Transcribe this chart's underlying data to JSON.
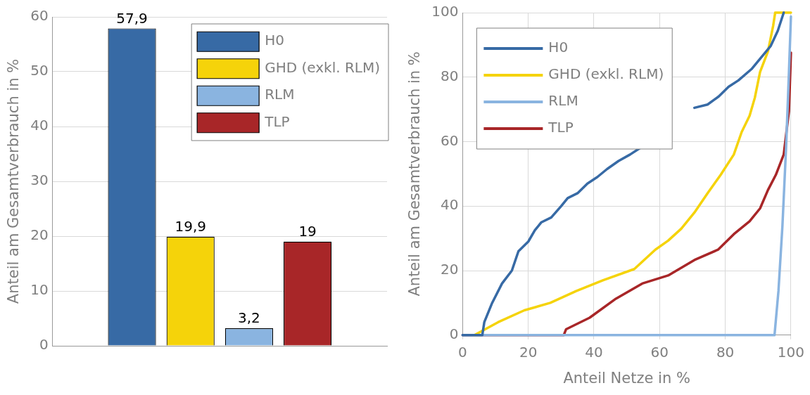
{
  "chart_data": [
    {
      "type": "bar",
      "ylabel": "Anteil am Gesamtverbrauch in %",
      "categories": [
        null
      ],
      "series": [
        {
          "name": "H0",
          "color": "#376aa5",
          "values": [
            57.9
          ],
          "value_labels": [
            "57,9"
          ]
        },
        {
          "name": "GHD (exkl. RLM)",
          "color": "#f5d30a",
          "values": [
            19.9
          ],
          "value_labels": [
            "19,9"
          ]
        },
        {
          "name": "RLM",
          "color": "#8ab4e0",
          "values": [
            3.2
          ],
          "value_labels": [
            "3,2"
          ]
        },
        {
          "name": "TLP",
          "color": "#a82628",
          "values": [
            19
          ],
          "value_labels": [
            "19"
          ]
        }
      ],
      "ylim": [
        0,
        60
      ],
      "yticks": [
        0,
        10,
        20,
        30,
        40,
        50,
        60
      ],
      "grid": "y",
      "legend": "top right",
      "tick_labels": "y"
    },
    {
      "type": "line",
      "xlabel": "Anteil Netze in %",
      "ylabel": "Anteil am Gesamtverbrauch in %",
      "series": [
        {
          "name": "H0",
          "color": "#376aa5",
          "x": [
            0,
            6,
            6.6,
            9,
            12,
            15,
            17,
            20,
            22,
            24,
            27,
            30,
            32,
            35,
            38,
            41,
            44,
            47.5,
            51,
            54,
            62,
            70.6,
            74.6,
            78,
            81,
            84,
            88,
            90.6,
            93.8,
            96,
            97.8
          ],
          "values": [
            0,
            0,
            4,
            10,
            16,
            20,
            26,
            29,
            32.5,
            35,
            36.5,
            40,
            42.5,
            44,
            47,
            49,
            51.5,
            54,
            56,
            58,
            null,
            70.5,
            71.5,
            74,
            77,
            79,
            82.5,
            85.7,
            89.6,
            94.4,
            100
          ]
        },
        {
          "name": "GHD (exkl. RLM)",
          "color": "#f5d30a",
          "x": [
            3.6,
            10.8,
            18.8,
            26.7,
            34.7,
            42.7,
            52.3,
            58.7,
            62.6,
            66.6,
            70.6,
            74.6,
            78.6,
            82.6,
            85,
            87.4,
            89,
            90.6,
            93,
            94.6,
            95.2,
            100
          ],
          "values": [
            0,
            4,
            7.7,
            10,
            13.7,
            17,
            20.5,
            26.5,
            29.3,
            33,
            38,
            44,
            49.7,
            56,
            63,
            68,
            73.6,
            81.6,
            88,
            96,
            100,
            100
          ]
        },
        {
          "name": "RLM",
          "color": "#8ab4e0",
          "x": [
            0,
            95,
            96.2,
            97.4,
            98.5,
            99.4,
            100
          ],
          "values": [
            0,
            0,
            13.7,
            33.7,
            57.7,
            81.6,
            98.8
          ]
        },
        {
          "name": "TLP",
          "color": "#a82628",
          "x": [
            0,
            30.8,
            31.5,
            38.7,
            46.7,
            54.7,
            62.6,
            70.6,
            77.8,
            82.6,
            87.4,
            90.6,
            93,
            95.4,
            97.8,
            99.4,
            100
          ],
          "values": [
            0,
            0,
            1.8,
            5.4,
            11.3,
            16,
            18.5,
            23.3,
            26.5,
            31.3,
            35.3,
            39.3,
            45,
            49.7,
            56,
            69.5,
            87.6
          ]
        }
      ],
      "xlim": [
        0,
        100
      ],
      "xticks": [
        0,
        20,
        40,
        60,
        80,
        100
      ],
      "ylim": [
        0,
        100
      ],
      "yticks": [
        0,
        20,
        40,
        60,
        80,
        100
      ],
      "grid": true,
      "legend": "top left",
      "marker": "none"
    }
  ]
}
